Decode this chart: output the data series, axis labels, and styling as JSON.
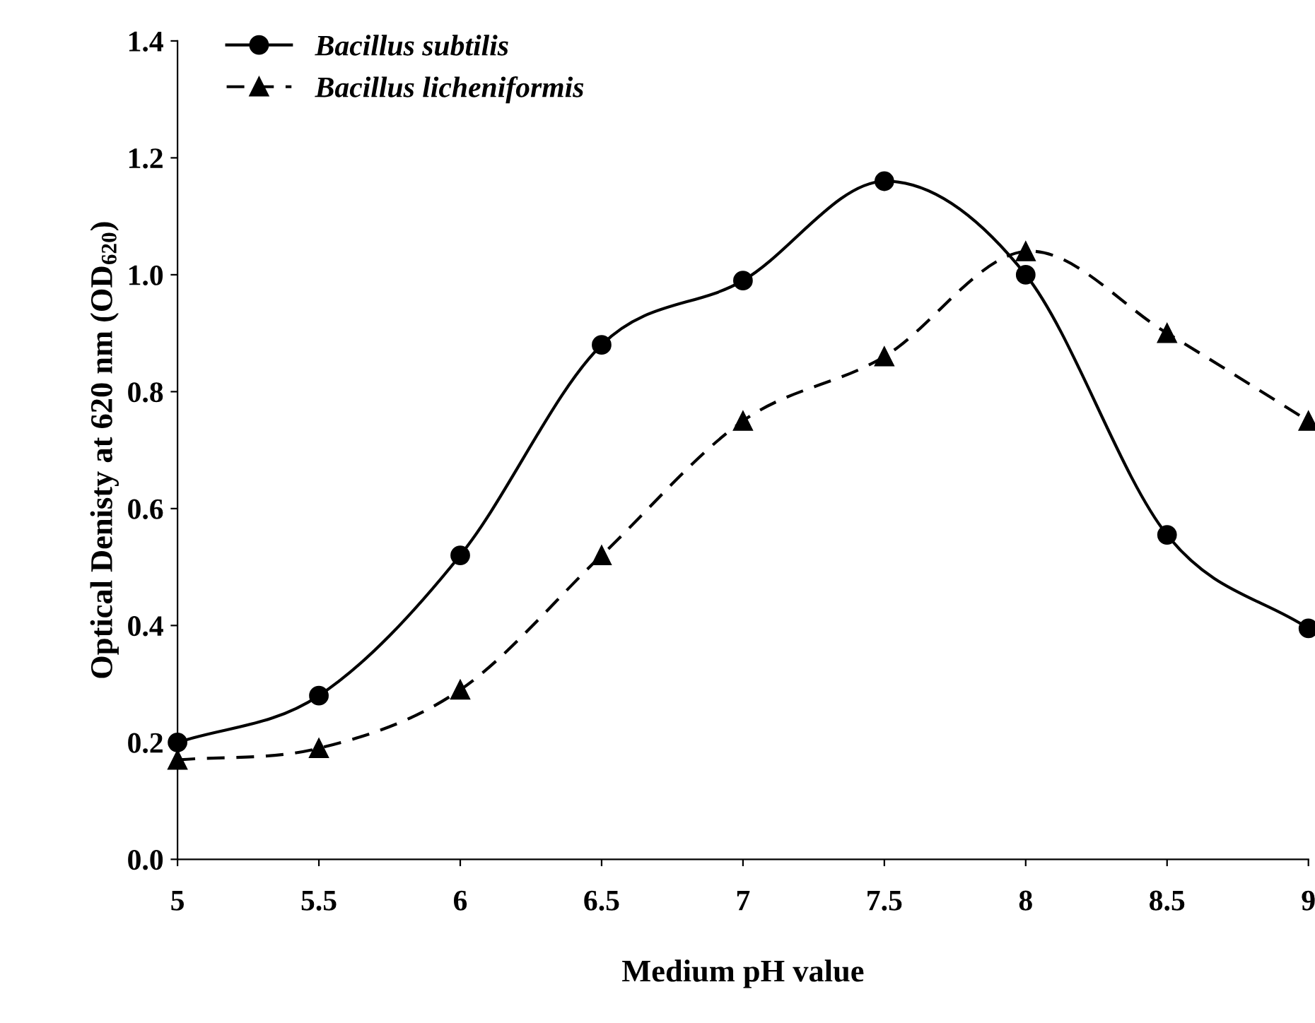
{
  "chart_data": {
    "type": "line",
    "xlabel": "Medium pH value",
    "ylabel": "Optical Denisty at 620 nm (OD$_{620}$)",
    "x": [
      5,
      5.5,
      6,
      6.5,
      7,
      7.5,
      8,
      8.5,
      9
    ],
    "series": [
      {
        "name": "Bacillus subtilis",
        "color": "#000000",
        "marker": "circle",
        "line_style": "solid",
        "values": [
          0.2,
          0.28,
          0.52,
          0.88,
          0.99,
          1.16,
          1.0,
          0.555,
          0.395
        ]
      },
      {
        "name": "Bacillus licheniformis",
        "color": "#000000",
        "marker": "triangle",
        "line_style": "dashed",
        "values": [
          0.17,
          0.19,
          0.29,
          0.52,
          0.75,
          0.86,
          1.04,
          0.9,
          0.75
        ]
      }
    ],
    "xlim": [
      5,
      9
    ],
    "xticks": [
      5,
      5.5,
      6,
      6.5,
      7,
      7.5,
      8,
      8.5,
      9
    ],
    "ylim": [
      0,
      1.4
    ],
    "yticks": [
      {
        "value": 0,
        "label": "0.0"
      },
      {
        "value": 0.2,
        "label": "0.2"
      },
      {
        "value": 0.4,
        "label": "0.4"
      },
      {
        "value": 0.6,
        "label": "0.6"
      },
      {
        "value": 0.8,
        "label": "0.8"
      },
      {
        "value": 1.0,
        "label": "1.0"
      },
      {
        "value": 1.2,
        "label": "1.2"
      },
      {
        "value": 1.4,
        "label": "1.4"
      }
    ],
    "grid": false,
    "legend": "top left"
  }
}
